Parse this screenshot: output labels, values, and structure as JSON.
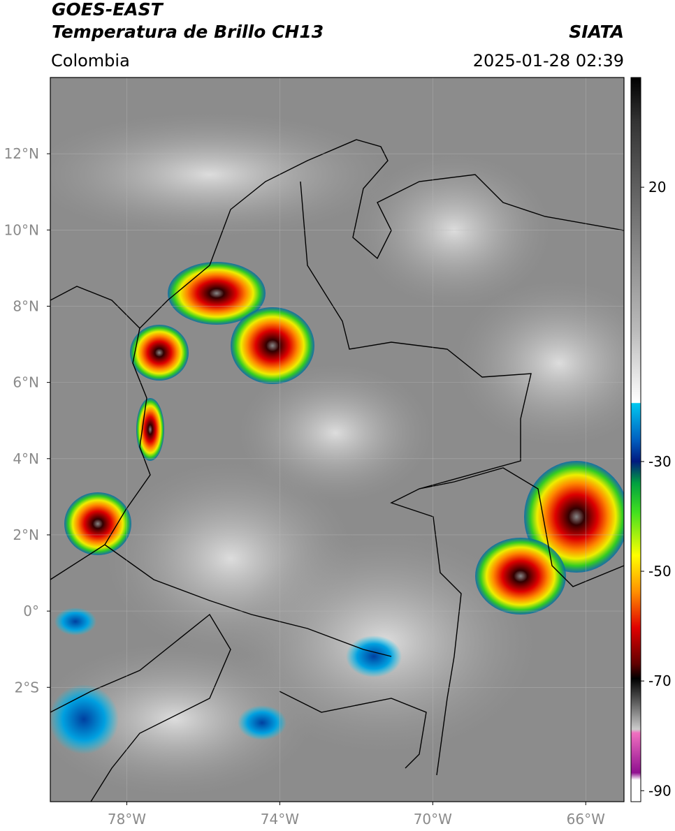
{
  "header": {
    "title": "GOES-EAST",
    "subtitle": "Temperatura de Brillo CH13",
    "source": "SIATA",
    "region": "Colombia",
    "datetime": "2025-01-28 02:39"
  },
  "map": {
    "xlim": [
      -80,
      -65
    ],
    "ylim": [
      -5,
      14
    ],
    "xticks": [
      {
        "value": -78,
        "label": "78°W"
      },
      {
        "value": -74,
        "label": "74°W"
      },
      {
        "value": -70,
        "label": "70°W"
      },
      {
        "value": -66,
        "label": "66°W"
      }
    ],
    "yticks": [
      {
        "value": 12,
        "label": "12°N"
      },
      {
        "value": 10,
        "label": "10°N"
      },
      {
        "value": 8,
        "label": "8°N"
      },
      {
        "value": 6,
        "label": "6°N"
      },
      {
        "value": 4,
        "label": "4°N"
      },
      {
        "value": 2,
        "label": "2°N"
      },
      {
        "value": 0,
        "label": "0°"
      },
      {
        "value": -2,
        "label": "2°S"
      }
    ],
    "grid": true
  },
  "colorbar": {
    "lim": [
      -92,
      40
    ],
    "ticks": [
      20,
      -30,
      -50,
      -70,
      -90
    ]
  }
}
